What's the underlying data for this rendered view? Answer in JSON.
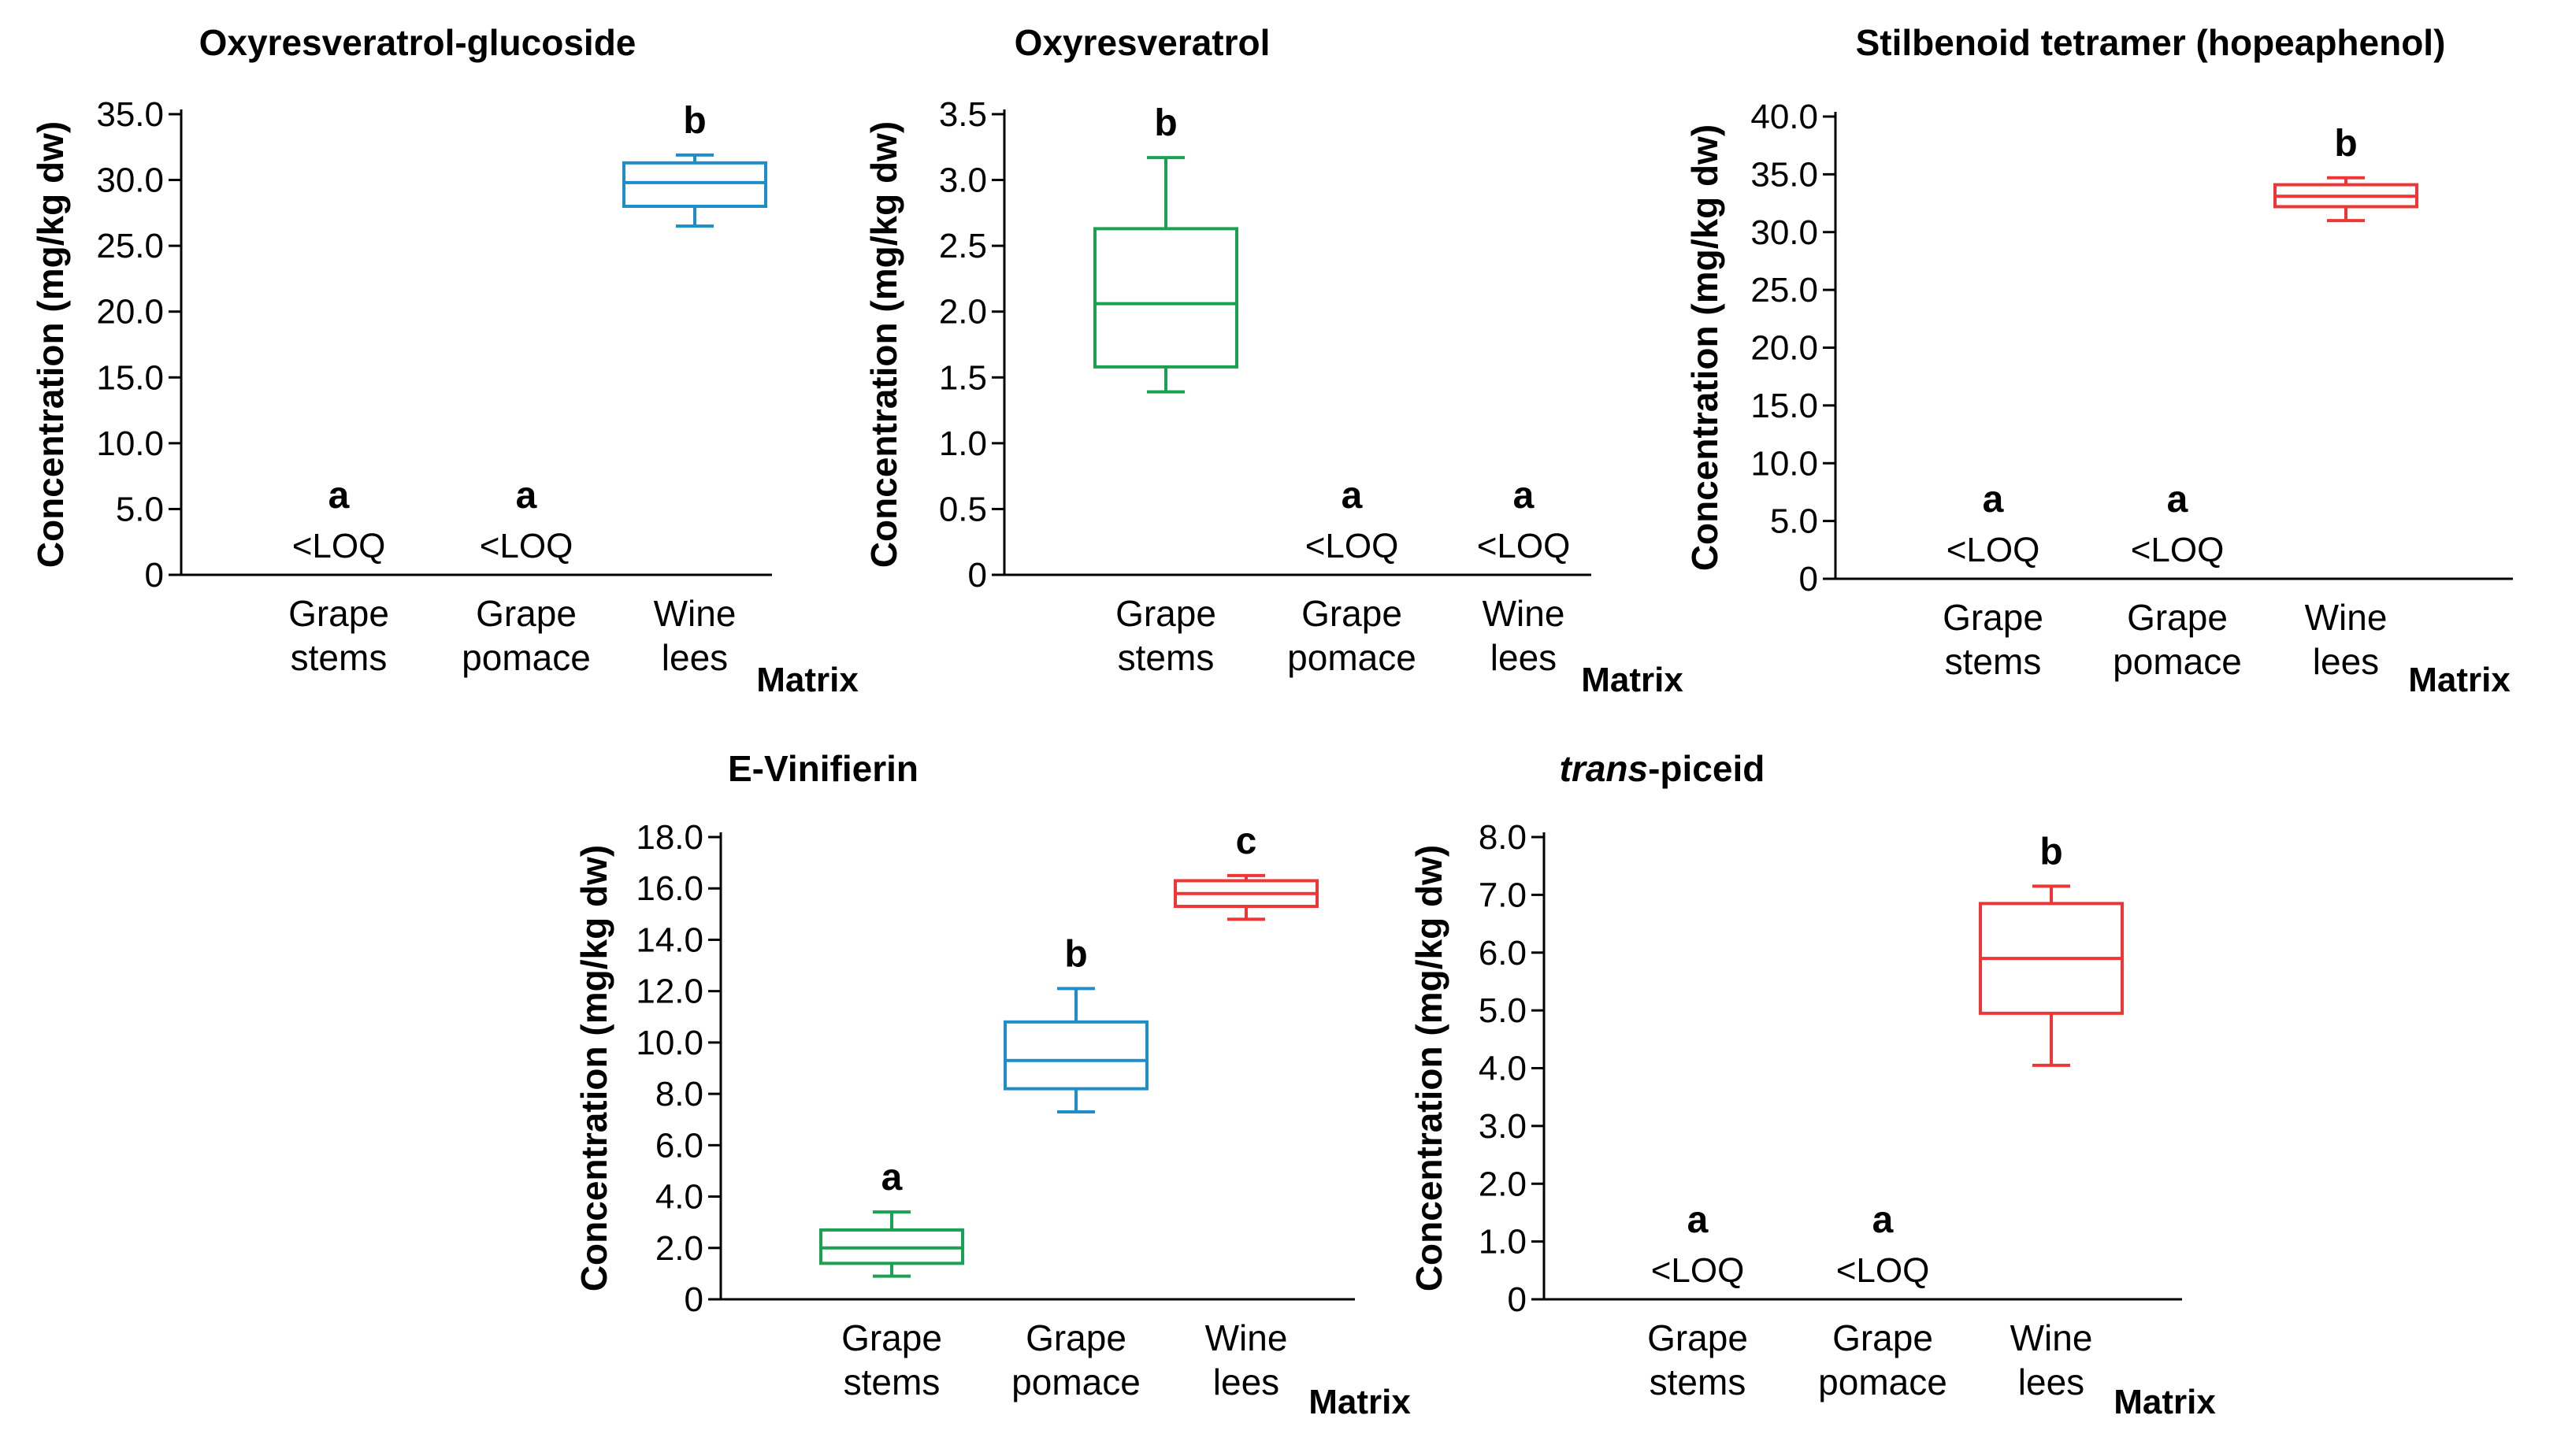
{
  "chart_data": [
    {
      "type": "box",
      "title": "Oxyresveratrol-glucoside",
      "title_parts": [],
      "ylabel": "Concentration (mg/kg dw)",
      "xlabel": "Matrix",
      "ylim": [
        0,
        35
      ],
      "yticks": [
        "0",
        "5.0",
        "10.0",
        "15.0",
        "20.0",
        "25.0",
        "30.0",
        "35.0"
      ],
      "categories": [
        [
          "Grape",
          "stems"
        ],
        [
          "Grape",
          "pomace"
        ],
        [
          "Wine",
          "lees"
        ]
      ],
      "boxes": [
        {
          "box": null,
          "letter": "a",
          "note": "<LOQ"
        },
        {
          "box": null,
          "letter": "a",
          "note": "<LOQ"
        },
        {
          "box": {
            "min": 26.5,
            "q1": 28.0,
            "median": 29.8,
            "q3": 31.3,
            "max": 31.9
          },
          "letter": "b",
          "note": "",
          "color": "#1f8dc8"
        }
      ]
    },
    {
      "type": "box",
      "title": "Oxyresveratrol",
      "title_parts": [],
      "ylabel": "Concentration (mg/kg dw)",
      "xlabel": "Matrix",
      "ylim": [
        0,
        3.5
      ],
      "yticks": [
        "0",
        "0.5",
        "1.0",
        "1.5",
        "2.0",
        "2.5",
        "3.0",
        "3.5"
      ],
      "categories": [
        [
          "Grape",
          "stems"
        ],
        [
          "Grape",
          "pomace"
        ],
        [
          "Wine",
          "lees"
        ]
      ],
      "boxes": [
        {
          "box": {
            "min": 1.39,
            "q1": 1.58,
            "median": 2.06,
            "q3": 2.63,
            "max": 3.17
          },
          "letter": "b",
          "note": "",
          "color": "#1aa152"
        },
        {
          "box": null,
          "letter": "a",
          "note": "<LOQ"
        },
        {
          "box": null,
          "letter": "a",
          "note": "<LOQ"
        }
      ]
    },
    {
      "type": "box",
      "title": "Stilbenoid tetramer (hopeaphenol)",
      "title_parts": [],
      "ylabel": "Concentration (mg/kg dw)",
      "xlabel": "Matrix",
      "ylim": [
        0,
        40
      ],
      "yticks": [
        "0",
        "5.0",
        "10.0",
        "15.0",
        "20.0",
        "25.0",
        "30.0",
        "35.0",
        "40.0"
      ],
      "categories": [
        [
          "Grape",
          "stems"
        ],
        [
          "Grape",
          "pomace"
        ],
        [
          "Wine",
          "lees"
        ]
      ],
      "boxes": [
        {
          "box": null,
          "letter": "a",
          "note": "<LOQ"
        },
        {
          "box": null,
          "letter": "a",
          "note": "<LOQ"
        },
        {
          "box": {
            "min": 31.0,
            "q1": 32.2,
            "median": 33.1,
            "q3": 34.1,
            "max": 34.7
          },
          "letter": "b",
          "note": "",
          "color": "#ee3636"
        }
      ]
    },
    {
      "type": "box",
      "title": "E-Vinifierin",
      "title_parts": [],
      "ylabel": "Concentration (mg/kg dw)",
      "xlabel": "Matrix",
      "ylim": [
        0,
        18
      ],
      "yticks": [
        "0",
        "2.0",
        "4.0",
        "6.0",
        "8.0",
        "10.0",
        "12.0",
        "14.0",
        "16.0",
        "18.0"
      ],
      "categories": [
        [
          "Grape",
          "stems"
        ],
        [
          "Grape",
          "pomace"
        ],
        [
          "Wine",
          "lees"
        ]
      ],
      "boxes": [
        {
          "box": {
            "min": 0.9,
            "q1": 1.4,
            "median": 2.0,
            "q3": 2.7,
            "max": 3.4
          },
          "letter": "a",
          "note": "",
          "color": "#1aa152"
        },
        {
          "box": {
            "min": 7.3,
            "q1": 8.2,
            "median": 9.3,
            "q3": 10.8,
            "max": 12.1
          },
          "letter": "b",
          "note": "",
          "color": "#1f8dc8"
        },
        {
          "box": {
            "min": 14.8,
            "q1": 15.3,
            "median": 15.8,
            "q3": 16.3,
            "max": 16.5
          },
          "letter": "c",
          "note": "",
          "color": "#ee3636"
        }
      ]
    },
    {
      "type": "box",
      "title": "",
      "title_parts": [
        {
          "text": "trans",
          "italic": true
        },
        {
          "text": "-piceid",
          "italic": false
        }
      ],
      "ylabel": "Concentration (mg/kg dw)",
      "xlabel": "Matrix",
      "ylim": [
        0,
        8
      ],
      "yticks": [
        "0",
        "1.0",
        "2.0",
        "3.0",
        "4.0",
        "5.0",
        "6.0",
        "7.0",
        "8.0"
      ],
      "categories": [
        [
          "Grape",
          "stems"
        ],
        [
          "Grape",
          "pomace"
        ],
        [
          "Wine",
          "lees"
        ]
      ],
      "boxes": [
        {
          "box": null,
          "letter": "a",
          "note": "<LOQ"
        },
        {
          "box": null,
          "letter": "a",
          "note": "<LOQ"
        },
        {
          "box": {
            "min": 4.05,
            "q1": 4.95,
            "median": 5.9,
            "q3": 6.85,
            "max": 7.15
          },
          "letter": "b",
          "note": "",
          "color": "#ee3636"
        }
      ]
    }
  ]
}
